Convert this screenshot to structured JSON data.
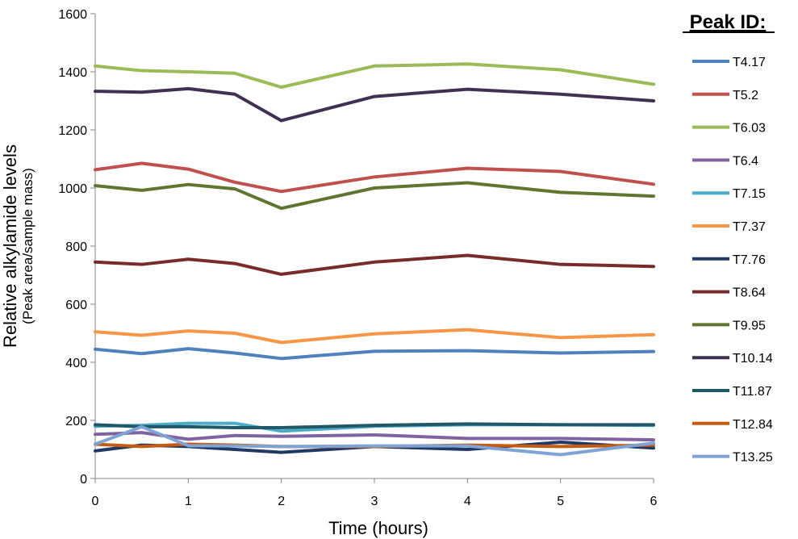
{
  "chart_data": {
    "type": "line",
    "xlabel": "Time (hours)",
    "ylabel": "Relative alkylamide levels",
    "ylabel_sub": "(Peak area/sample mass)",
    "legend_title": "Peak ID:",
    "legend_position": "right",
    "xlim": [
      0,
      6
    ],
    "ylim": [
      0,
      1600
    ],
    "x_ticks": [
      0,
      1,
      2,
      3,
      4,
      5,
      6
    ],
    "y_ticks": [
      0,
      200,
      400,
      600,
      800,
      1000,
      1200,
      1400,
      1600
    ],
    "grid": false,
    "x": [
      0,
      0.5,
      1,
      1.5,
      2,
      3,
      4,
      5,
      6
    ],
    "series": [
      {
        "name": "T4.17",
        "color": "#4F81BD",
        "values": [
          445,
          430,
          447,
          432,
          413,
          438,
          440,
          432,
          437
        ]
      },
      {
        "name": "T5.2",
        "color": "#C0504D",
        "values": [
          1063,
          1085,
          1065,
          1020,
          988,
          1038,
          1068,
          1057,
          1013
        ]
      },
      {
        "name": "T6.03",
        "color": "#9BBB59",
        "values": [
          1420,
          1404,
          1400,
          1395,
          1347,
          1420,
          1427,
          1407,
          1357
        ]
      },
      {
        "name": "T6.4",
        "color": "#8064A2",
        "values": [
          152,
          158,
          135,
          148,
          145,
          150,
          138,
          138,
          133
        ]
      },
      {
        "name": "T7.15",
        "color": "#4BACC6",
        "values": [
          180,
          183,
          190,
          190,
          163,
          180,
          185,
          185,
          183
        ]
      },
      {
        "name": "T7.37",
        "color": "#F79646",
        "values": [
          505,
          493,
          508,
          500,
          468,
          498,
          512,
          485,
          495
        ]
      },
      {
        "name": "T7.76",
        "color": "#1F3864",
        "values": [
          95,
          115,
          110,
          100,
          90,
          110,
          100,
          125,
          105
        ]
      },
      {
        "name": "T8.64",
        "color": "#772C2A",
        "values": [
          745,
          737,
          755,
          740,
          703,
          745,
          768,
          737,
          730
        ]
      },
      {
        "name": "T9.95",
        "color": "#5F7530",
        "values": [
          1008,
          992,
          1012,
          997,
          930,
          1000,
          1018,
          985,
          972
        ]
      },
      {
        "name": "T10.14",
        "color": "#403152",
        "values": [
          1333,
          1330,
          1342,
          1323,
          1232,
          1315,
          1340,
          1323,
          1300
        ]
      },
      {
        "name": "T11.87",
        "color": "#215868",
        "values": [
          185,
          178,
          178,
          175,
          175,
          183,
          188,
          185,
          185
        ]
      },
      {
        "name": "T12.84",
        "color": "#C55A11",
        "values": [
          118,
          110,
          118,
          115,
          110,
          110,
          115,
          110,
          115
        ]
      },
      {
        "name": "T13.25",
        "color": "#7EA3D4",
        "values": [
          118,
          178,
          113,
          112,
          110,
          112,
          112,
          82,
          122
        ]
      }
    ]
  }
}
